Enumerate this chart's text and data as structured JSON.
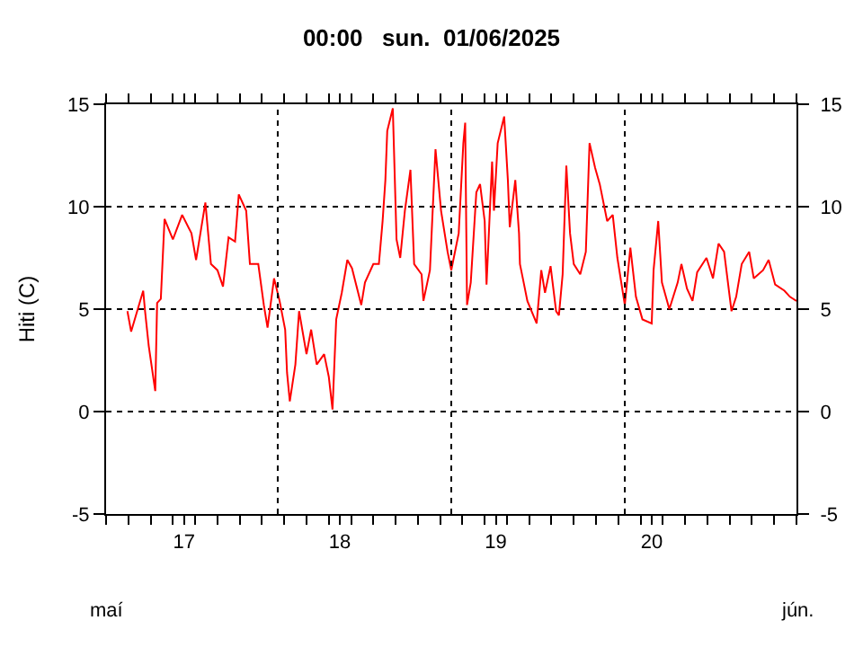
{
  "chart_data": {
    "type": "line",
    "title": "00:00   sun.  01/06/2025",
    "ylabel": "Hiti (C)",
    "x": [
      "2025-05-01T23:00",
      "2025-05-02T03:00",
      "2025-05-02T16:00",
      "2025-05-02T18:00",
      "2025-05-02T22:00",
      "2025-05-03T05:00",
      "2025-05-03T07:00",
      "2025-05-03T11:00",
      "2025-05-03T15:00",
      "2025-05-04T00:00",
      "2025-05-04T10:00",
      "2025-05-04T20:00",
      "2025-05-05T01:00",
      "2025-05-05T11:00",
      "2025-05-05T17:00",
      "2025-05-06T00:00",
      "2025-05-06T06:00",
      "2025-05-06T12:00",
      "2025-05-06T19:00",
      "2025-05-06T23:00",
      "2025-05-07T07:00",
      "2025-05-07T11:00",
      "2025-05-07T20:00",
      "2025-05-08T02:00",
      "2025-05-08T06:00",
      "2025-05-08T13:00",
      "2025-05-08T19:00",
      "2025-05-09T01:00",
      "2025-05-09T03:00",
      "2025-05-09T06:00",
      "2025-05-09T12:00",
      "2025-05-09T16:00",
      "2025-05-10T00:00",
      "2025-05-10T05:00",
      "2025-05-10T11:00",
      "2025-05-10T19:00",
      "2025-05-11T00:00",
      "2025-05-11T04:00",
      "2025-05-11T08:00",
      "2025-05-11T14:00",
      "2025-05-11T20:00",
      "2025-05-12T01:00",
      "2025-05-12T11:00",
      "2025-05-12T15:00",
      "2025-05-13T00:00",
      "2025-05-13T06:00",
      "2025-05-13T10:00",
      "2025-05-13T13:00",
      "2025-05-13T15:00",
      "2025-05-13T21:00",
      "2025-05-14T01:00",
      "2025-05-14T05:00",
      "2025-05-14T10:00",
      "2025-05-14T16:00",
      "2025-05-14T20:00",
      "2025-05-15T04:00",
      "2025-05-15T06:00",
      "2025-05-15T13:00",
      "2025-05-15T19:00",
      "2025-05-16T01:00",
      "2025-05-16T08:00",
      "2025-05-16T12:00",
      "2025-05-16T20:00",
      "2025-05-17T01:00",
      "2025-05-17T03:00",
      "2025-05-17T05:00",
      "2025-05-17T09:00",
      "2025-05-17T15:00",
      "2025-05-17T19:00",
      "2025-05-18T00:00",
      "2025-05-18T02:00",
      "2025-05-18T08:00",
      "2025-05-18T10:00",
      "2025-05-18T14:00",
      "2025-05-18T21:00",
      "2025-05-19T01:00",
      "2025-05-19T03:00",
      "2025-05-19T09:00",
      "2025-05-19T13:00",
      "2025-05-19T14:00",
      "2025-05-19T18:00",
      "2025-05-19T22:00",
      "2025-05-20T08:00",
      "2025-05-20T13:00",
      "2025-05-20T17:00",
      "2025-05-20T23:00",
      "2025-05-21T05:00",
      "2025-05-21T08:00",
      "2025-05-21T12:00",
      "2025-05-21T16:00",
      "2025-05-21T20:00",
      "2025-05-22T00:00",
      "2025-05-22T07:00",
      "2025-05-22T13:00",
      "2025-05-22T17:00",
      "2025-05-22T23:00",
      "2025-05-23T04:00",
      "2025-05-23T12:00",
      "2025-05-23T18:00",
      "2025-05-23T23:00",
      "2025-05-24T07:00",
      "2025-05-24T13:00",
      "2025-05-24T19:00",
      "2025-05-25T02:00",
      "2025-05-25T12:00",
      "2025-05-25T14:00",
      "2025-05-25T19:00",
      "2025-05-25T23:00",
      "2025-05-26T07:00",
      "2025-05-26T16:00",
      "2025-05-26T20:00",
      "2025-05-27T02:00",
      "2025-05-27T08:00",
      "2025-05-27T13:00",
      "2025-05-27T23:00",
      "2025-05-28T06:00",
      "2025-05-28T12:00",
      "2025-05-28T18:00",
      "2025-05-29T02:00",
      "2025-05-29T07:00",
      "2025-05-29T13:00",
      "2025-05-29T21:00",
      "2025-05-30T02:00",
      "2025-05-30T12:00",
      "2025-05-30T18:00",
      "2025-05-31T01:00",
      "2025-05-31T11:00",
      "2025-05-31T17:00",
      "2025-06-01T00:00"
    ],
    "series": [
      {
        "color": "#ff0000",
        "values": [
          4.9,
          3.9,
          5.9,
          4.9,
          3.2,
          1.0,
          5.3,
          5.5,
          9.4,
          8.4,
          9.6,
          8.7,
          7.4,
          10.2,
          7.2,
          6.9,
          6.1,
          8.5,
          8.3,
          10.6,
          9.8,
          7.2,
          7.2,
          5.2,
          4.1,
          6.5,
          5.4,
          4.0,
          1.9,
          0.5,
          2.3,
          4.9,
          2.8,
          4.0,
          2.3,
          2.8,
          1.7,
          0.1,
          4.5,
          5.8,
          7.4,
          7.0,
          5.2,
          6.3,
          7.2,
          7.2,
          9.3,
          11.3,
          13.7,
          14.8,
          8.4,
          7.5,
          9.8,
          11.8,
          7.2,
          6.7,
          5.4,
          6.9,
          12.8,
          9.8,
          7.8,
          6.9,
          8.7,
          13.1,
          14.1,
          5.2,
          6.3,
          10.7,
          11.1,
          9.3,
          6.2,
          12.2,
          9.8,
          13.1,
          14.4,
          11.3,
          9.0,
          11.3,
          8.7,
          7.2,
          6.3,
          5.4,
          4.3,
          6.9,
          5.8,
          7.1,
          4.9,
          4.7,
          6.7,
          12.0,
          8.7,
          7.2,
          6.7,
          7.8,
          13.1,
          11.9,
          11.1,
          9.3,
          9.6,
          7.5,
          5.2,
          8.0,
          5.6,
          4.5,
          4.3,
          6.9,
          9.3,
          6.3,
          5.0,
          6.3,
          7.2,
          6.0,
          5.4,
          6.8,
          7.5,
          6.5,
          8.2,
          7.8,
          4.9,
          5.6,
          7.2,
          7.8,
          6.5,
          6.9,
          7.4,
          6.2,
          5.9,
          5.6,
          5.4
        ]
      }
    ],
    "xlim": [
      "2025-05-01",
      "2025-06-01"
    ],
    "xticks": [
      {
        "value": "2025-05-01",
        "label": null
      },
      {
        "value": "2025-05-02",
        "label": null
      },
      {
        "value": "2025-05-03",
        "label": null
      },
      {
        "value": "2025-05-04",
        "label": null
      },
      {
        "value": "2025-05-04T12:00",
        "label": "17"
      },
      {
        "value": "2025-05-05",
        "label": null
      },
      {
        "value": "2025-05-06",
        "label": null
      },
      {
        "value": "2025-05-07",
        "label": null
      },
      {
        "value": "2025-05-08",
        "label": null
      },
      {
        "value": "2025-05-09",
        "label": null
      },
      {
        "value": "2025-05-10",
        "label": null
      },
      {
        "value": "2025-05-11",
        "label": null
      },
      {
        "value": "2025-05-11T12:00",
        "label": "18"
      },
      {
        "value": "2025-05-12",
        "label": null
      },
      {
        "value": "2025-05-13",
        "label": null
      },
      {
        "value": "2025-05-14",
        "label": null
      },
      {
        "value": "2025-05-15",
        "label": null
      },
      {
        "value": "2025-05-16",
        "label": null
      },
      {
        "value": "2025-05-17",
        "label": null
      },
      {
        "value": "2025-05-18",
        "label": null
      },
      {
        "value": "2025-05-18T12:00",
        "label": "19"
      },
      {
        "value": "2025-05-19",
        "label": null
      },
      {
        "value": "2025-05-20",
        "label": null
      },
      {
        "value": "2025-05-21",
        "label": null
      },
      {
        "value": "2025-05-22",
        "label": null
      },
      {
        "value": "2025-05-23",
        "label": null
      },
      {
        "value": "2025-05-24",
        "label": null
      },
      {
        "value": "2025-05-25",
        "label": null
      },
      {
        "value": "2025-05-25T12:00",
        "label": "20"
      },
      {
        "value": "2025-05-26",
        "label": null
      },
      {
        "value": "2025-05-27",
        "label": null
      },
      {
        "value": "2025-05-28",
        "label": null
      },
      {
        "value": "2025-05-29",
        "label": null
      },
      {
        "value": "2025-05-30",
        "label": null
      },
      {
        "value": "2025-05-31",
        "label": null
      },
      {
        "value": "2025-06-01",
        "label": null
      }
    ],
    "ylim": [
      -5,
      15
    ],
    "yticks": [
      -5,
      0,
      5,
      10,
      15
    ],
    "y2lim": [
      -5,
      15
    ],
    "y2ticks": [
      -5,
      0,
      5,
      10,
      15
    ],
    "grid": "y",
    "marker": "none",
    "line_style": "solid",
    "ref_lines": [
      {
        "axis": "x",
        "value": "2025-05-08T17:00",
        "line_style": "dotted"
      },
      {
        "axis": "x",
        "value": "2025-05-16T12:00",
        "line_style": "dotted"
      },
      {
        "axis": "x",
        "value": "2025-05-24T07:00",
        "line_style": "dotted"
      }
    ],
    "annotations": [
      "maí",
      "jún."
    ]
  }
}
